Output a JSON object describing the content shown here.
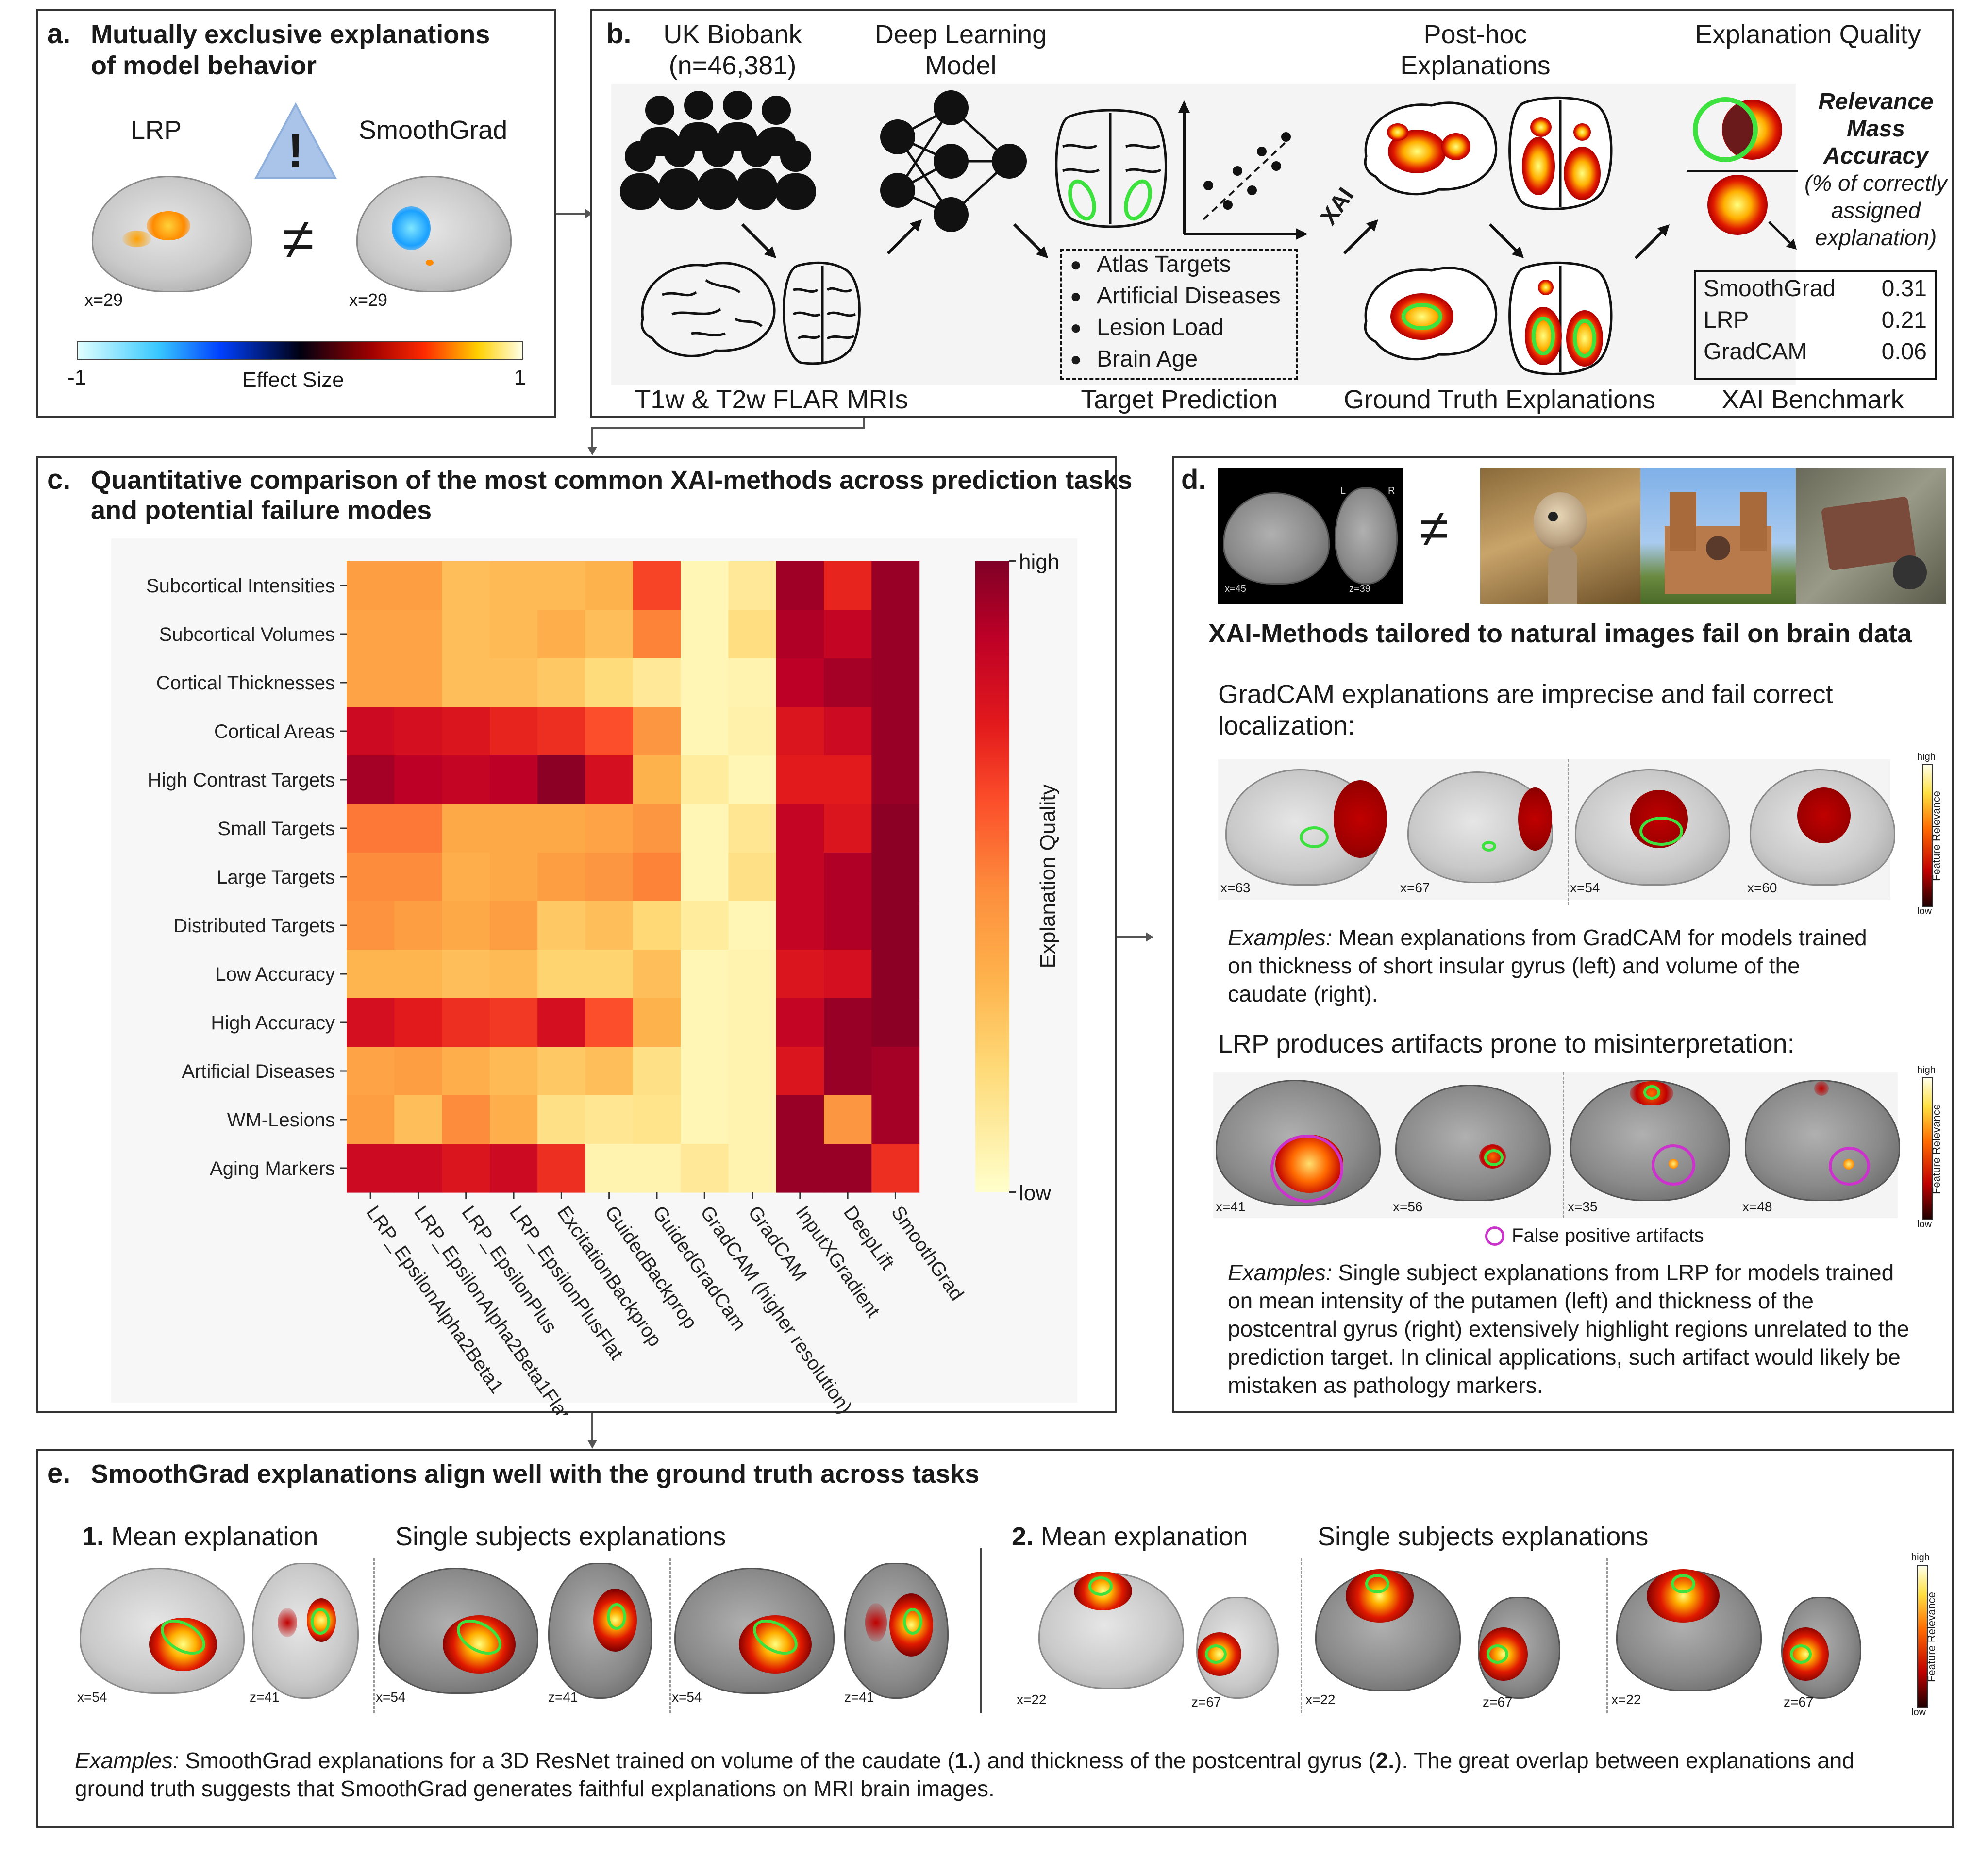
{
  "panel_a": {
    "letter": "a.",
    "title_line1": "Mutually exclusive explanations",
    "title_line2": "of model behavior",
    "lrp_label": "LRP",
    "smoothgrad_label": "SmoothGrad",
    "warning_glyph": "!",
    "not_equal": "≠",
    "lrp_slice": "x=29",
    "sg_slice": "x=29",
    "colorbar_min": "-1",
    "colorbar_max": "1",
    "colorbar_label": "Effect Size",
    "icon": "warning-triangle-icon"
  },
  "panel_b": {
    "letter": "b.",
    "biobank_line1": "UK Biobank",
    "biobank_line2": "(n=46,381)",
    "dl_line1": "Deep Learning",
    "dl_line2": "Model",
    "posthoc_line1": "Post-hoc",
    "posthoc_line2": "Explanations",
    "quality_title": "Explanation Quality",
    "xai_label": "XAI",
    "metric_line1": "Relevance",
    "metric_line2": "Mass",
    "metric_line3": "Accuracy",
    "metric_line4": "(% of correctly",
    "metric_line5": "assigned",
    "metric_line6": "explanation)",
    "targets": [
      "Atlas Targets",
      "Artificial Diseases",
      "Lesion Load",
      "Brain Age"
    ],
    "bullet": "●",
    "benchmark": [
      {
        "method": "SmoothGrad",
        "score": "0.31"
      },
      {
        "method": "LRP",
        "score": "0.21"
      },
      {
        "method": "GradCAM",
        "score": "0.06"
      }
    ],
    "caption_mri": "T1w & T2w FLAR MRIs",
    "caption_target": "Target Prediction",
    "caption_gt": "Ground Truth Explanations",
    "caption_bench": "XAI Benchmark"
  },
  "panel_c": {
    "letter": "c.",
    "title_line1": "Quantitative comparison of the most common XAI-methods across prediction tasks",
    "title_line2": "and potential failure modes",
    "colorbar_high": "high",
    "colorbar_low": "low",
    "colorbar_label": "Explanation Quality"
  },
  "chart_data": {
    "type": "heatmap",
    "title": "",
    "xlabel": "",
    "ylabel": "",
    "colorbar_label": "Explanation Quality",
    "colorbar_range": [
      "low",
      "high"
    ],
    "colormap": "YlOrRd",
    "rows": [
      "Subcortical Intensities",
      "Subcortical Volumes",
      "Cortical Thicknesses",
      "Cortical Areas",
      "High Contrast Targets",
      "Small Targets",
      "Large Targets",
      "Distributed Targets",
      "Low Accuracy",
      "High Accuracy",
      "Artificial Diseases",
      "WM-Lesions",
      "Aging Markers"
    ],
    "columns": [
      "LRP_EpsilonAlpha2Beta1",
      "LRP_EpsilonAlpha2Beta1Flat",
      "LRP_EpsilonPlus",
      "LRP_EpsilonPlusFlat",
      "ExcitationBackprop",
      "GuidedBackprop",
      "GuidedGradCam",
      "GradCAM (higher resolution)",
      "GradCAM",
      "InputXGradient",
      "DeepLift",
      "SmoothGrad"
    ],
    "values": [
      [
        0.52,
        0.52,
        0.4,
        0.42,
        0.42,
        0.45,
        0.72,
        0.08,
        0.18,
        0.95,
        0.78,
        0.96
      ],
      [
        0.5,
        0.5,
        0.4,
        0.42,
        0.46,
        0.4,
        0.6,
        0.08,
        0.26,
        0.92,
        0.88,
        0.96
      ],
      [
        0.5,
        0.5,
        0.4,
        0.4,
        0.36,
        0.28,
        0.18,
        0.08,
        0.1,
        0.9,
        0.94,
        0.96
      ],
      [
        0.86,
        0.84,
        0.82,
        0.78,
        0.76,
        0.7,
        0.55,
        0.08,
        0.12,
        0.82,
        0.86,
        0.96
      ],
      [
        0.94,
        0.9,
        0.88,
        0.9,
        0.98,
        0.84,
        0.45,
        0.16,
        0.08,
        0.8,
        0.8,
        0.96
      ],
      [
        0.62,
        0.62,
        0.48,
        0.48,
        0.48,
        0.5,
        0.55,
        0.08,
        0.2,
        0.88,
        0.82,
        0.98
      ],
      [
        0.58,
        0.58,
        0.46,
        0.48,
        0.52,
        0.55,
        0.6,
        0.08,
        0.24,
        0.88,
        0.92,
        0.98
      ],
      [
        0.56,
        0.52,
        0.48,
        0.52,
        0.36,
        0.4,
        0.3,
        0.16,
        0.08,
        0.88,
        0.92,
        0.98
      ],
      [
        0.44,
        0.44,
        0.4,
        0.42,
        0.32,
        0.32,
        0.4,
        0.08,
        0.1,
        0.82,
        0.84,
        0.98
      ],
      [
        0.84,
        0.8,
        0.76,
        0.74,
        0.84,
        0.7,
        0.45,
        0.08,
        0.1,
        0.88,
        0.96,
        0.98
      ],
      [
        0.5,
        0.52,
        0.46,
        0.42,
        0.36,
        0.4,
        0.24,
        0.08,
        0.1,
        0.82,
        0.96,
        0.94
      ],
      [
        0.52,
        0.4,
        0.58,
        0.46,
        0.24,
        0.2,
        0.22,
        0.08,
        0.1,
        0.96,
        0.55,
        0.94
      ],
      [
        0.86,
        0.86,
        0.82,
        0.86,
        0.76,
        0.1,
        0.1,
        0.18,
        0.1,
        0.96,
        0.96,
        0.76
      ]
    ]
  },
  "panel_d": {
    "letter": "d.",
    "not_equal": "≠",
    "fail_heading": "XAI-Methods tailored to natural images fail on brain data",
    "gradcam_heading_line1": "GradCAM explanations are imprecise and fail correct",
    "gradcam_heading_line2": "localization:",
    "gradcam_slices": [
      "x=63",
      "x=67",
      "x=54",
      "x=60"
    ],
    "gradcam_examples_label": "Examples:",
    "gradcam_caption_line1": " Mean explanations from GradCAM for models trained",
    "gradcam_caption_line2": "on thickness of short insular gyrus (left) and volume of the",
    "gradcam_caption_line3": "caudate (right).",
    "lrp_heading": "LRP produces artifacts prone to misinterpretation:",
    "lrp_slices": [
      "x=41",
      "x=56",
      "x=35",
      "x=48"
    ],
    "false_positive_label": "False positive artifacts",
    "lrp_examples_label": "Examples:",
    "lrp_caption_line1": " Single subject explanations from LRP for models trained",
    "lrp_caption_line2": "on mean intensity of the putamen (left) and thickness of the",
    "lrp_caption_line3": "postcentral gyrus (right) extensively highlight regions unrelated to the",
    "lrp_caption_line4": "prediction target. In clinical applications, such artifact would likely be",
    "lrp_caption_line5": "mistaken as pathology markers.",
    "fr_high": "high",
    "fr_low": "low",
    "fr_label": "Feature Relevance",
    "mri_slice_sag": "x=45",
    "mri_slice_ax": "z=39",
    "mri_l": "L",
    "mri_r": "R"
  },
  "panel_e": {
    "letter": "e.",
    "title": "SmoothGrad explanations align well with the ground truth across tasks",
    "group1_num": "1.",
    "group1_mean": " Mean explanation",
    "group1_single": "Single subjects explanations",
    "group2_num": "2.",
    "group2_mean": " Mean explanation",
    "group2_single": "Single subjects explanations",
    "slices_1": [
      "x=54",
      "z=41",
      "x=54",
      "z=41",
      "x=54",
      "z=41"
    ],
    "slices_2": [
      "x=22",
      "z=67",
      "x=22",
      "z=67",
      "x=22",
      "z=67"
    ],
    "fr_high": "high",
    "fr_low": "low",
    "fr_label": "Feature Relevance",
    "caption_examples": "Examples:",
    "caption_part1": " SmoothGrad explanations for a 3D ResNet trained on volume of the caudate (",
    "caption_bold1": "1.",
    "caption_part2": ") and thickness of the postcentral gyrus (",
    "caption_bold2": "2.",
    "caption_part3": "). The great overlap between explanations and",
    "caption_line2": "ground truth suggests that SmoothGrad generates faithful explanations on MRI brain images."
  }
}
